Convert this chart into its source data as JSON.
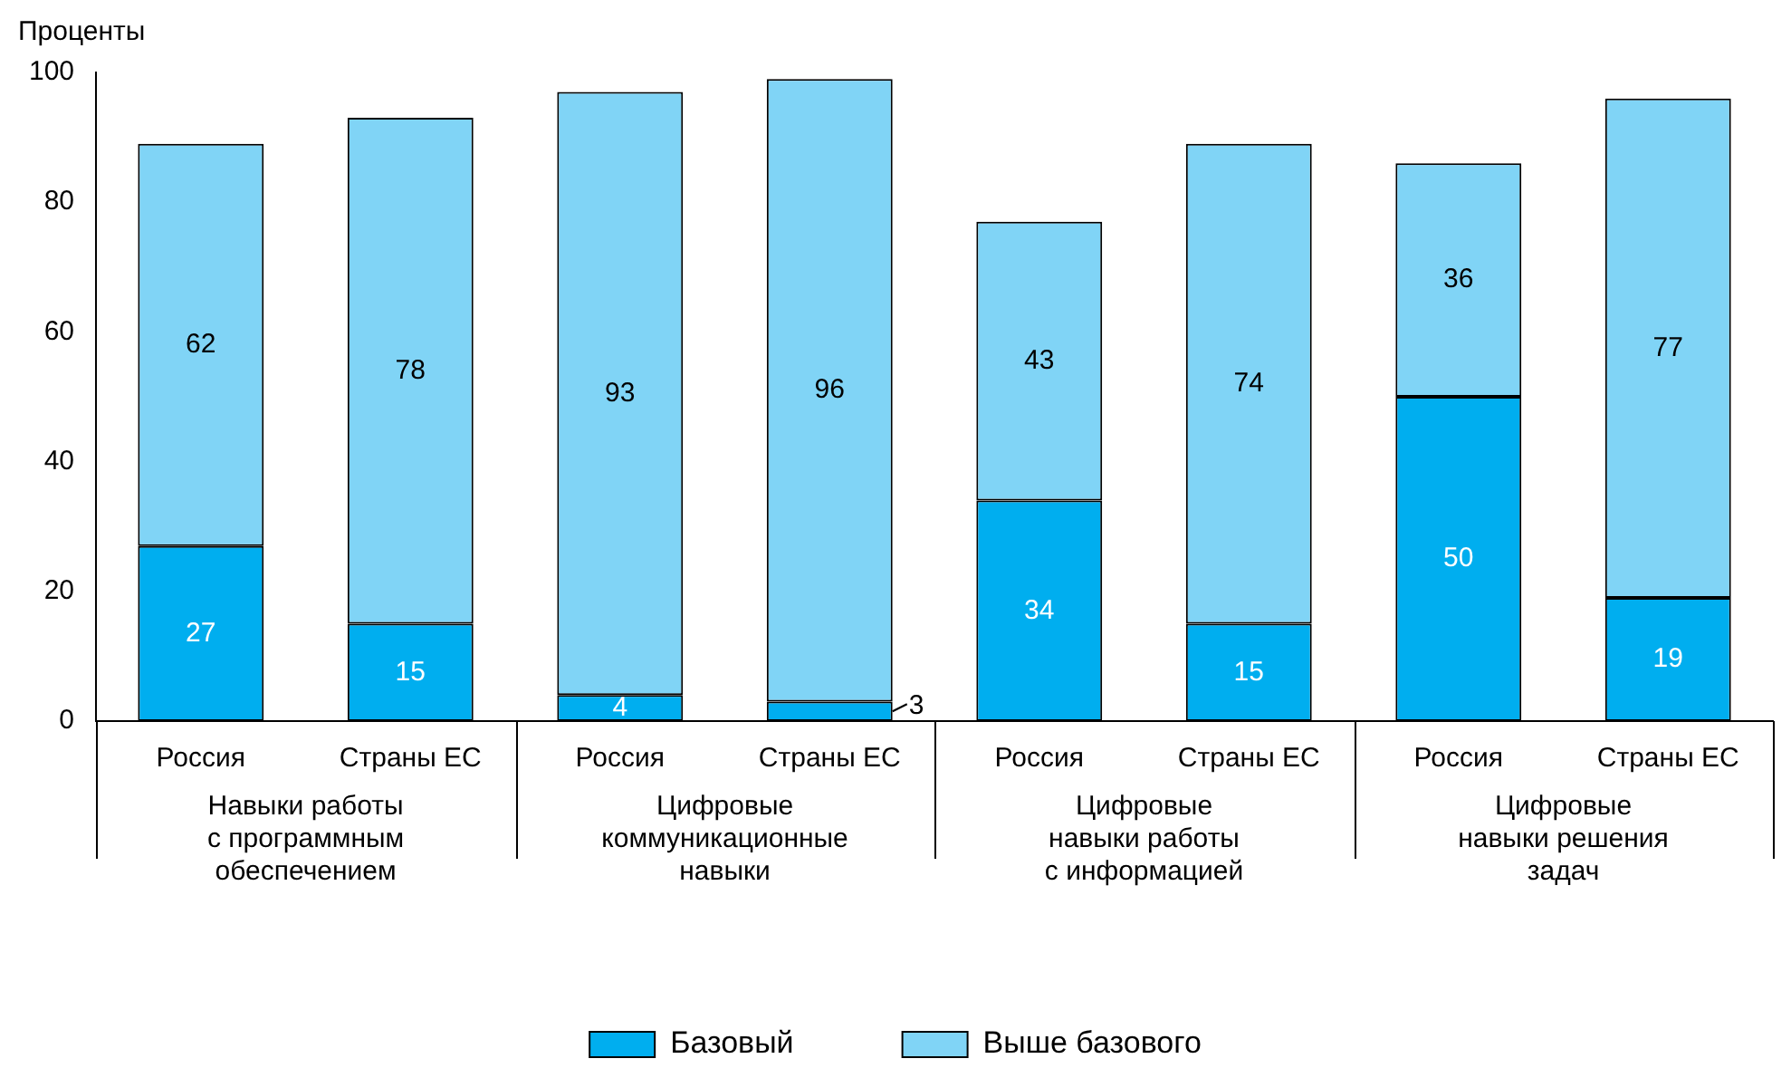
{
  "chart_data": {
    "type": "bar",
    "stacked": true,
    "ylabel": "Проценты",
    "categories": [
      "Россия",
      "Страны ЕС",
      "Россия",
      "Страны ЕС",
      "Россия",
      "Страны ЕС",
      "Россия",
      "Страны ЕС"
    ],
    "series": [
      {
        "name": "Базовый",
        "color": "#00aeef",
        "values": [
          27,
          15,
          4,
          3,
          34,
          15,
          50,
          19
        ]
      },
      {
        "name": "Выше базового",
        "color": "#80d4f6",
        "values": [
          62,
          78,
          93,
          96,
          43,
          74,
          36,
          77
        ]
      }
    ],
    "ylim": [
      0,
      100
    ],
    "yticks": [
      0,
      20,
      40,
      60,
      80,
      100
    ],
    "grid": false,
    "legend": "bottom",
    "data_labels": true,
    "annotations": [
      "Навыки работы\nс программным\nобеспечением",
      "Цифровые\nкоммуникационные\nнавыки",
      "Цифровые\nнавыки работы\nс информацией",
      "Цифровые\nнавыки решения\nзадач"
    ]
  }
}
